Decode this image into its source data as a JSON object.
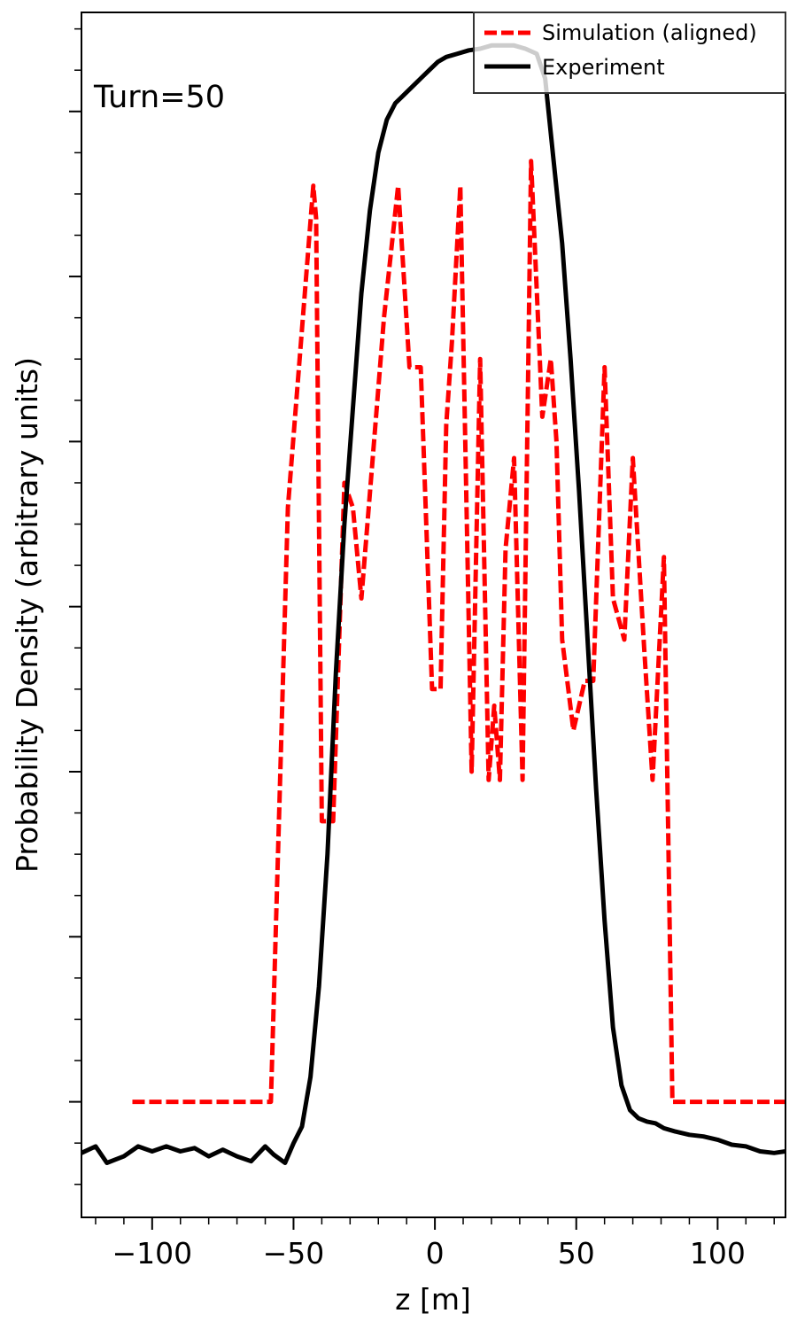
{
  "chart_data": {
    "type": "line",
    "title": "",
    "xlabel": "z [m]",
    "ylabel": "Probability Density (arbitrary units)",
    "xlim": [
      -125,
      124
    ],
    "ylim": [
      -0.7,
      6.6
    ],
    "xticks": [
      -100,
      -50,
      0,
      50,
      100
    ],
    "x_tick_labels": [
      "−100",
      "−50",
      "0",
      "50",
      "100"
    ],
    "y_tick_labels_shown": false,
    "annotation": "Turn=50",
    "legend": {
      "placement": "top-right",
      "entries": [
        "Simulation (aligned)",
        "Experiment"
      ]
    },
    "series": [
      {
        "name": "Simulation (aligned)",
        "color": "#ff0000",
        "style": "dashed",
        "x": [
          -107,
          -58,
          -52,
          -43,
          -42,
          -40,
          -36,
          -32,
          -29,
          -26,
          -22,
          -18,
          -13,
          -9,
          -5,
          -1,
          2,
          4,
          6,
          9,
          13,
          16,
          19,
          21,
          23,
          25,
          28,
          31,
          34,
          38,
          41,
          43,
          45,
          49,
          53,
          56,
          60,
          63,
          67,
          70,
          74,
          77,
          81,
          84,
          88,
          124
        ],
        "y": [
          0,
          0,
          3.6,
          5.55,
          5.35,
          1.7,
          1.7,
          3.75,
          3.6,
          3.05,
          3.9,
          4.75,
          5.55,
          4.45,
          4.45,
          2.5,
          2.5,
          4.1,
          4.6,
          5.55,
          2.0,
          4.5,
          1.95,
          2.4,
          1.95,
          3.35,
          3.9,
          1.95,
          5.7,
          4.15,
          4.5,
          4.0,
          2.8,
          2.25,
          2.55,
          2.55,
          4.45,
          3.05,
          2.8,
          3.9,
          2.75,
          1.95,
          3.3,
          0.0,
          0,
          0
        ],
        "note": "approximate trace read from figure"
      },
      {
        "name": "Experiment",
        "color": "#000000",
        "style": "solid",
        "x": [
          -125,
          -120,
          -116,
          -110,
          -105,
          -100,
          -95,
          -90,
          -85,
          -80,
          -75,
          -70,
          -65,
          -60,
          -57,
          -53,
          -50,
          -47,
          -44,
          -41,
          -38,
          -35,
          -32,
          -29,
          -26,
          -23,
          -20,
          -17,
          -14,
          -11,
          -8,
          -5,
          -2,
          1,
          4,
          8,
          12,
          16,
          20,
          24,
          28,
          32,
          36,
          39,
          42,
          45,
          48,
          51,
          54,
          57,
          60,
          63,
          66,
          69,
          72,
          75,
          78,
          81,
          85,
          90,
          95,
          100,
          105,
          110,
          115,
          120,
          124
        ],
        "y": [
          -0.31,
          -0.27,
          -0.37,
          -0.33,
          -0.27,
          -0.3,
          -0.27,
          -0.3,
          -0.28,
          -0.33,
          -0.29,
          -0.33,
          -0.36,
          -0.27,
          -0.32,
          -0.37,
          -0.25,
          -0.15,
          0.15,
          0.7,
          1.5,
          2.6,
          3.5,
          4.2,
          4.9,
          5.4,
          5.75,
          5.95,
          6.05,
          6.1,
          6.15,
          6.2,
          6.25,
          6.3,
          6.33,
          6.35,
          6.37,
          6.38,
          6.4,
          6.4,
          6.4,
          6.38,
          6.35,
          6.2,
          5.7,
          5.2,
          4.5,
          3.7,
          2.8,
          1.9,
          1.1,
          0.45,
          0.1,
          -0.05,
          -0.1,
          -0.12,
          -0.13,
          -0.16,
          -0.18,
          -0.2,
          -0.21,
          -0.23,
          -0.26,
          -0.27,
          -0.3,
          -0.31,
          -0.3
        ],
        "note": "approximate trace read from figure"
      }
    ]
  }
}
